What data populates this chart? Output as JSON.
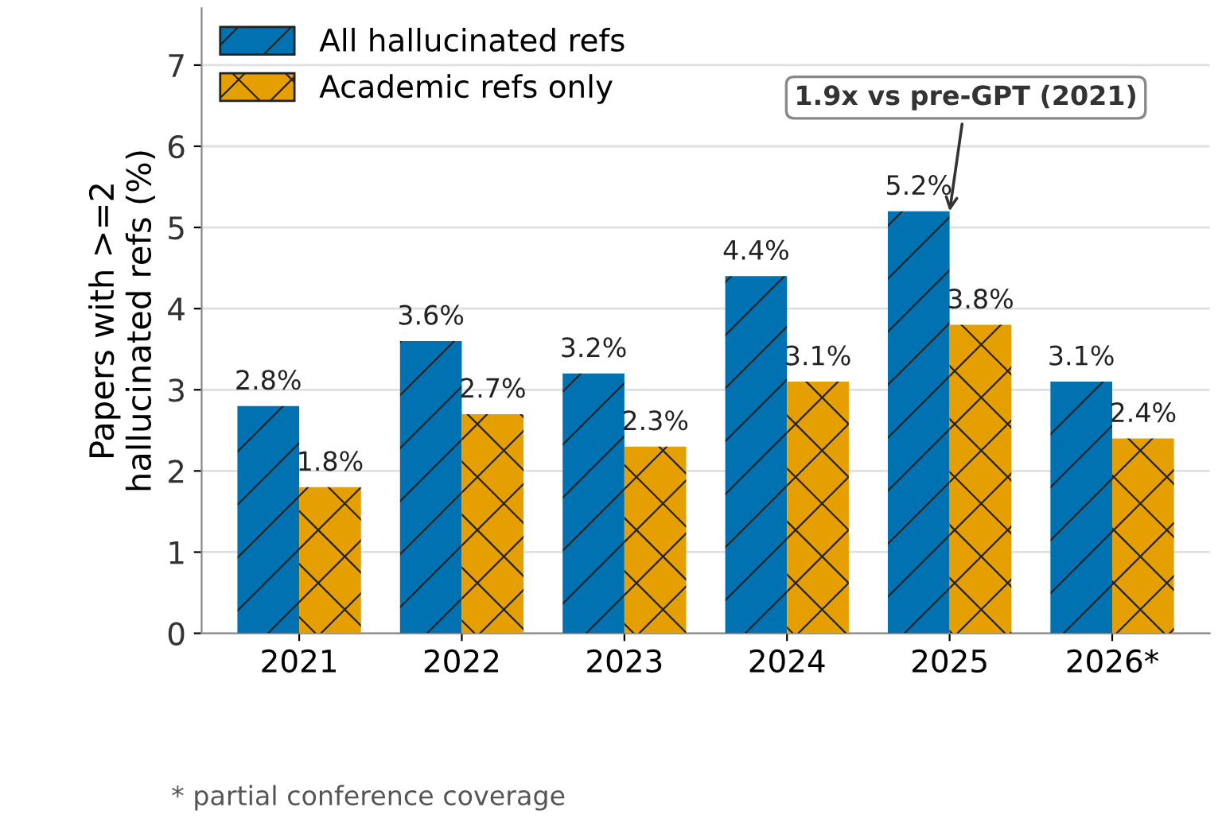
{
  "chart_data": {
    "type": "bar",
    "ylabel": "Papers with >=2\nhallucinated refs (%)",
    "categories": [
      "2021",
      "2022",
      "2023",
      "2024",
      "2025",
      "2026*"
    ],
    "series": [
      {
        "name": "All hallucinated refs",
        "color": "#0072b2",
        "values": [
          2.8,
          3.6,
          3.2,
          4.4,
          5.2,
          3.1
        ],
        "value_labels": [
          "2.8%",
          "3.6%",
          "3.2%",
          "4.4%",
          "5.2%",
          "3.1%"
        ]
      },
      {
        "name": "Academic refs only",
        "color": "#e69f00",
        "values": [
          1.8,
          2.7,
          2.3,
          3.1,
          3.8,
          2.4
        ],
        "value_labels": [
          "1.8%",
          "2.7%",
          "2.3%",
          "3.1%",
          "3.8%",
          "2.4%"
        ]
      }
    ],
    "ylim": [
      0,
      7.7
    ],
    "yticks": [
      0,
      1,
      2,
      3,
      4,
      5,
      6,
      7
    ],
    "grid": "y",
    "legend": "top left",
    "annotations": [
      {
        "text": "1.9x vs pre-GPT (2021)",
        "x": "2025",
        "y": 5.2
      },
      "* partial conference coverage"
    ]
  }
}
